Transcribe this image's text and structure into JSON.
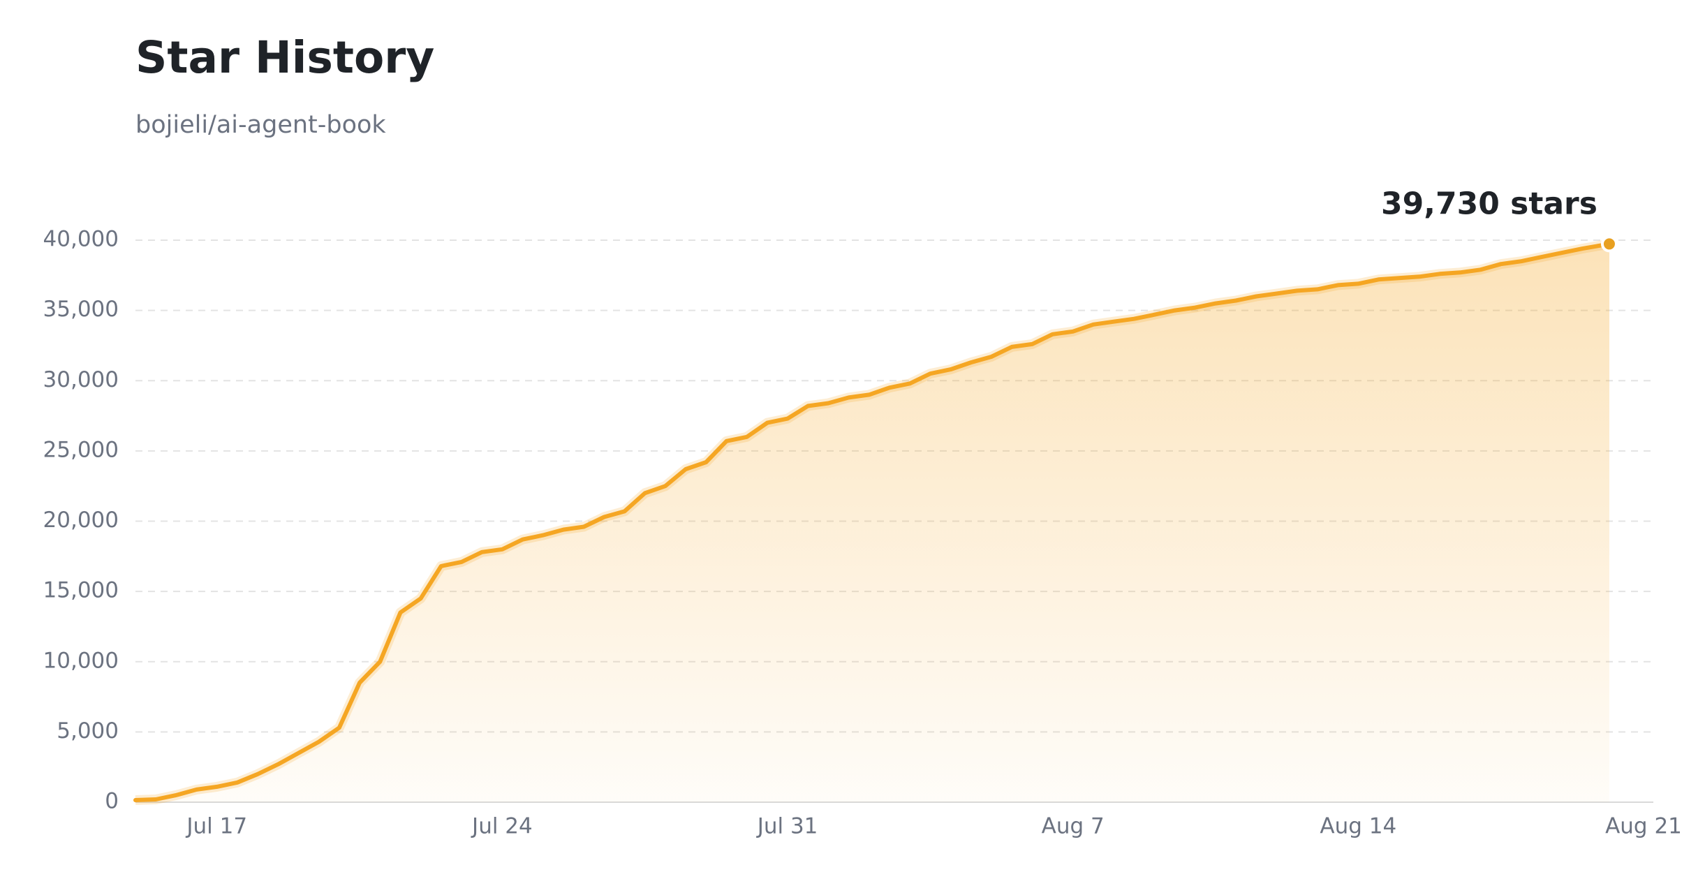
{
  "chart_data": {
    "type": "area",
    "title": "Star History",
    "subtitle": "bojieli/ai-agent-book",
    "annotation": "39,730 stars",
    "color": "#f5a623",
    "grid": true,
    "x": [
      15,
      15.5,
      16,
      16.5,
      17,
      17.5,
      18,
      18.5,
      19,
      19.5,
      20,
      20.5,
      21,
      21.5,
      22,
      22.5,
      23,
      23.5,
      24,
      24.5,
      25,
      25.5,
      26,
      26.5,
      27,
      27.5,
      28,
      28.5,
      29,
      29.5,
      30,
      30.5,
      31,
      31.5,
      32,
      32.5,
      33,
      33.5,
      34,
      34.5,
      35,
      35.5,
      36,
      36.5,
      37,
      37.5,
      38,
      38.5,
      39,
      39.5,
      40,
      40.5,
      41,
      41.5,
      42,
      42.5,
      43,
      43.5,
      44,
      44.5,
      45,
      45.5,
      46,
      46.5,
      47,
      47.5,
      48,
      48.5,
      49,
      49.5,
      50,
      50.5,
      51.16
    ],
    "values": [
      150,
      200,
      500,
      900,
      1100,
      1400,
      2000,
      2700,
      3500,
      4300,
      5300,
      8500,
      10000,
      13500,
      14500,
      16800,
      17100,
      17800,
      18000,
      18700,
      19000,
      19400,
      19600,
      20300,
      20700,
      22000,
      22500,
      23700,
      24200,
      25700,
      26000,
      27000,
      27300,
      28200,
      28400,
      28800,
      29000,
      29500,
      29800,
      30500,
      30800,
      31300,
      31700,
      32400,
      32600,
      33300,
      33500,
      34000,
      34200,
      34400,
      34700,
      35000,
      35200,
      35500,
      35700,
      36000,
      36200,
      36400,
      36500,
      36800,
      36900,
      37200,
      37300,
      37400,
      37600,
      37700,
      37900,
      38300,
      38500,
      38800,
      39100,
      39400,
      39730
    ],
    "xlim": [
      15,
      52.24
    ],
    "xticks": [
      {
        "value": 17,
        "label": "Jul 17"
      },
      {
        "value": 24,
        "label": "Jul 24"
      },
      {
        "value": 31,
        "label": "Jul 31"
      },
      {
        "value": 38,
        "label": "Aug 7"
      },
      {
        "value": 45,
        "label": "Aug 14"
      },
      {
        "value": 52,
        "label": "Aug 21"
      }
    ],
    "ylim": [
      0,
      40000
    ],
    "yticks": [
      0,
      {
        "value": 5000,
        "label": "5,000"
      },
      {
        "value": 10000,
        "label": "10,000"
      },
      {
        "value": 15000,
        "label": "15,000"
      },
      {
        "value": 20000,
        "label": "20,000"
      },
      {
        "value": 25000,
        "label": "25,000"
      },
      {
        "value": 30000,
        "label": "30,000"
      },
      {
        "value": 35000,
        "label": "35,000"
      },
      {
        "value": 40000,
        "label": "40,000"
      }
    ]
  }
}
